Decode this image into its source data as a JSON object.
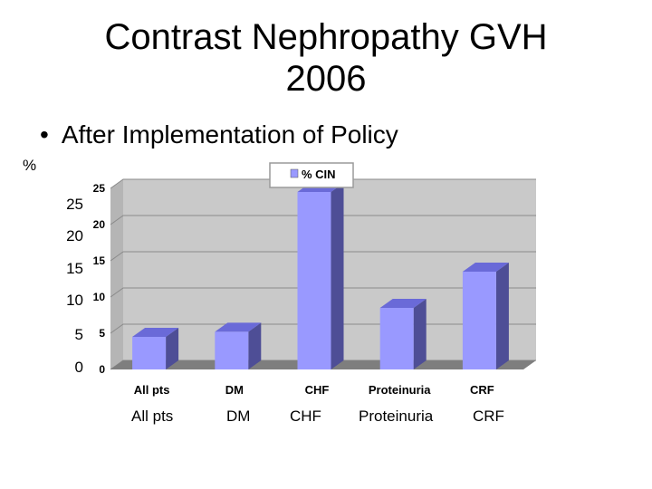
{
  "title_line1": "Contrast Nephropathy   GVH",
  "title_line2": "2006",
  "bullet": "After Implementation of Policy",
  "bullet_marker": "•",
  "y_unit_label": "%",
  "outer_ticks": [
    "25",
    "20",
    "15",
    "10",
    "5",
    "0"
  ],
  "outer_categories": [
    "All pts",
    "DM",
    "CHF",
    "Proteinuria",
    "CRF"
  ],
  "chart_data": {
    "type": "bar",
    "categories": [
      "All pts",
      "DM",
      "CHF",
      "Proteinuria",
      "CRF"
    ],
    "series": [
      {
        "name": "% CIN",
        "values": [
          4.5,
          5.2,
          24.5,
          8.5,
          13.5
        ]
      }
    ],
    "ylim": [
      0,
      25
    ],
    "yticks": [
      0,
      5,
      10,
      15,
      20,
      25
    ],
    "title": "",
    "xlabel": "",
    "ylabel": "%",
    "legend": "top-center",
    "grid": true,
    "colors": {
      "bar_front": "#9999ff",
      "bar_top": "#6a6ad8",
      "bar_side": "#4e4e96",
      "wall": "#c9c9c9",
      "floor": "#7e7e7e",
      "legend_swatch": "#9999ff"
    }
  }
}
